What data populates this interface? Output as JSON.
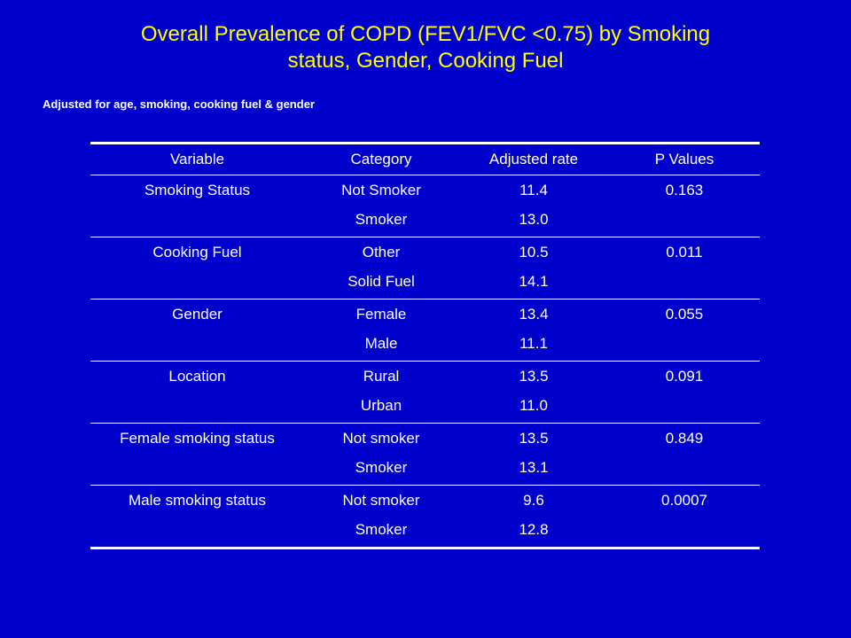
{
  "slide": {
    "title_lines": [
      "Overall Prevalence of COPD (FEV1/FVC <0.75) by Smoking",
      "status, Gender, Cooking Fuel"
    ],
    "subtitle": "Adjusted for age, smoking, cooking fuel & gender"
  },
  "table": {
    "headers": [
      "Variable",
      "Category",
      "Adjusted rate",
      "P Values"
    ],
    "groups": [
      {
        "variable": "Smoking Status",
        "p_value": "0.163",
        "rows": [
          {
            "category": "Not Smoker",
            "rate": "11.4"
          },
          {
            "category": "Smoker",
            "rate": "13.0"
          }
        ]
      },
      {
        "variable": "Cooking Fuel",
        "p_value": "0.011",
        "rows": [
          {
            "category": "Other",
            "rate": "10.5"
          },
          {
            "category": "Solid Fuel",
            "rate": "14.1"
          }
        ]
      },
      {
        "variable": "Gender",
        "p_value": "0.055",
        "rows": [
          {
            "category": "Female",
            "rate": "13.4"
          },
          {
            "category": "Male",
            "rate": "11.1"
          }
        ]
      },
      {
        "variable": "Location",
        "p_value": "0.091",
        "rows": [
          {
            "category": "Rural",
            "rate": "13.5"
          },
          {
            "category": "Urban",
            "rate": "11.0"
          }
        ]
      },
      {
        "variable": "Female smoking status",
        "p_value": "0.849",
        "rows": [
          {
            "category": "Not smoker",
            "rate": "13.5"
          },
          {
            "category": "Smoker",
            "rate": "13.1"
          }
        ]
      },
      {
        "variable": "Male smoking status",
        "p_value": "0.0007",
        "rows": [
          {
            "category": "Not smoker",
            "rate": "9.6"
          },
          {
            "category": "Smoker",
            "rate": "12.8"
          }
        ]
      }
    ]
  },
  "colors": {
    "background": "#0000CC",
    "title": "#FFFF00",
    "text": "#FFFFFF"
  }
}
